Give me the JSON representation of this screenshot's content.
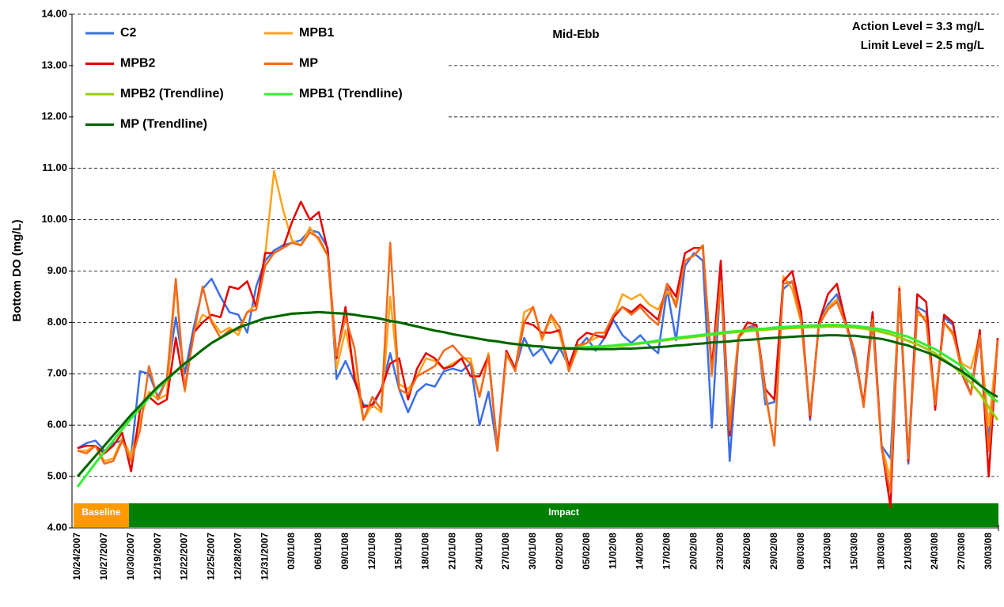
{
  "chart_data": {
    "type": "line",
    "y_label": "Bottom DO (mg/L)",
    "annotations": [
      "Mid-Ebb",
      "Action Level = 3.3 mg/L",
      "Limit Level = 2.5 mg/L"
    ],
    "bands": [
      {
        "label": "Baseline",
        "color": "#ff9900"
      },
      {
        "label": "Impact",
        "color": "#008000"
      }
    ],
    "ylim": [
      4,
      14
    ],
    "yticks": [
      {
        "value": 4,
        "label": "4.00"
      },
      {
        "value": 5,
        "label": "5.00"
      },
      {
        "value": 6,
        "label": "6.00"
      },
      {
        "value": 7,
        "label": "7.00"
      },
      {
        "value": 8,
        "label": "8.00"
      },
      {
        "value": 9,
        "label": "9.00"
      },
      {
        "value": 10,
        "label": "10.00"
      },
      {
        "value": 11,
        "label": "11.00"
      },
      {
        "value": 12,
        "label": "12.00"
      },
      {
        "value": 13,
        "label": "13.00"
      },
      {
        "value": 14,
        "label": "14.00"
      }
    ],
    "grid": true,
    "categories": [
      "10/24/2007",
      null,
      null,
      "10/27/2007",
      null,
      null,
      "10/30/2007",
      null,
      null,
      "12/19/2007",
      null,
      null,
      "12/22/2007",
      null,
      null,
      "12/25/2007",
      null,
      null,
      "12/28/2007",
      null,
      null,
      "12/31/2007",
      null,
      null,
      "03/01/08",
      null,
      null,
      "06/01/08",
      null,
      null,
      "09/01/08",
      null,
      null,
      "12/01/08",
      null,
      null,
      "15/01/08",
      null,
      null,
      "18/01/08",
      null,
      null,
      "21/01/08",
      null,
      null,
      "24/01/08",
      null,
      null,
      "27/01/08",
      null,
      null,
      "30/01/08",
      null,
      null,
      "02/02/08",
      null,
      null,
      "05/02/08",
      null,
      null,
      "11/02/08",
      null,
      null,
      "14/02/08",
      null,
      null,
      "17/02/08",
      null,
      null,
      "20/02/08",
      null,
      null,
      "23/02/08",
      null,
      null,
      "26/02/08",
      null,
      null,
      "29/02/08",
      null,
      null,
      "08/03/08",
      null,
      null,
      "12/03/08",
      null,
      null,
      "15/03/08",
      null,
      null,
      "18/03/08",
      null,
      null,
      "21/03/08",
      null,
      null,
      "24/03/08",
      null,
      null,
      "27/03/08",
      null,
      null,
      "30/03/08",
      null
    ],
    "series": [
      {
        "name": "C2",
        "color": "#3c6ee6",
        "width": 2.5,
        "values": [
          5.55,
          5.65,
          5.7,
          5.5,
          5.65,
          5.7,
          5.4,
          7.05,
          7.0,
          6.55,
          6.9,
          8.1,
          7.0,
          7.9,
          8.65,
          8.85,
          8.5,
          8.2,
          8.15,
          7.8,
          8.7,
          9.2,
          9.4,
          9.5,
          9.55,
          9.6,
          9.8,
          9.75,
          9.45,
          6.9,
          7.25,
          6.85,
          6.4,
          6.35,
          6.7,
          7.4,
          6.7,
          6.25,
          6.65,
          6.8,
          6.75,
          7.05,
          7.1,
          7.05,
          7.2,
          6.0,
          6.65,
          5.5,
          7.4,
          7.1,
          7.7,
          7.35,
          7.5,
          7.2,
          7.5,
          7.15,
          7.5,
          7.7,
          7.45,
          7.7,
          8.05,
          7.75,
          7.6,
          7.75,
          7.55,
          7.4,
          8.65,
          7.65,
          9.1,
          9.35,
          9.2,
          5.95,
          8.9,
          5.3,
          7.7,
          7.9,
          7.95,
          6.4,
          6.45,
          8.65,
          8.8,
          8.1,
          6.1,
          8.0,
          8.35,
          8.55,
          8.0,
          7.3,
          6.4,
          8.0,
          5.6,
          5.35,
          8.55,
          5.25,
          8.3,
          8.2,
          6.35,
          8.1,
          7.95,
          7.1,
          6.6,
          7.7,
          5.7,
          7.6
        ]
      },
      {
        "name": "MPB1",
        "color": "#ffa31a",
        "width": 2.5,
        "values": [
          5.5,
          5.5,
          5.6,
          5.3,
          5.35,
          5.75,
          5.4,
          6.1,
          6.65,
          6.5,
          6.6,
          8.8,
          6.65,
          7.8,
          8.15,
          8.05,
          7.8,
          7.9,
          7.75,
          8.2,
          8.35,
          9.3,
          10.95,
          10.2,
          9.6,
          9.5,
          9.85,
          9.6,
          9.3,
          7.1,
          7.85,
          7.05,
          6.1,
          6.4,
          6.25,
          8.5,
          6.8,
          6.7,
          6.95,
          7.3,
          7.25,
          7.1,
          7.2,
          7.3,
          7.3,
          6.55,
          7.4,
          5.5,
          7.35,
          7.1,
          8.2,
          8.3,
          7.65,
          8.1,
          7.75,
          7.05,
          7.5,
          7.6,
          7.7,
          7.75,
          8.1,
          8.55,
          8.45,
          8.55,
          8.35,
          8.25,
          8.6,
          8.4,
          9.2,
          9.3,
          9.5,
          6.95,
          8.75,
          6.1,
          7.75,
          7.85,
          7.85,
          6.6,
          5.6,
          8.9,
          8.65,
          8.0,
          6.2,
          7.95,
          8.3,
          8.45,
          8.0,
          7.45,
          6.4,
          8.1,
          5.6,
          4.95,
          8.7,
          5.4,
          8.15,
          8.1,
          6.5,
          8.0,
          7.75,
          7.2,
          7.1,
          7.75,
          6.0,
          7.65
        ]
      },
      {
        "name": "MPB2",
        "color": "#e60000",
        "width": 2.5,
        "values": [
          5.55,
          5.6,
          5.6,
          5.45,
          5.6,
          5.85,
          5.1,
          6.3,
          6.55,
          6.4,
          6.5,
          7.7,
          6.7,
          7.8,
          8.0,
          8.15,
          8.1,
          8.7,
          8.65,
          8.8,
          8.3,
          9.35,
          9.35,
          9.45,
          9.95,
          10.35,
          10.0,
          10.15,
          9.4,
          7.3,
          8.3,
          6.9,
          6.35,
          6.4,
          6.7,
          7.2,
          7.3,
          6.5,
          7.1,
          7.4,
          7.3,
          7.1,
          7.15,
          7.3,
          6.95,
          6.95,
          7.35,
          5.55,
          7.45,
          7.1,
          8.0,
          7.95,
          7.8,
          7.8,
          7.85,
          7.15,
          7.65,
          7.8,
          7.75,
          7.7,
          8.1,
          8.3,
          8.2,
          8.35,
          8.2,
          8.05,
          8.75,
          8.5,
          9.35,
          9.45,
          9.45,
          7.1,
          9.2,
          5.8,
          7.7,
          8.0,
          7.95,
          6.7,
          6.5,
          8.8,
          9.0,
          8.2,
          6.15,
          8.0,
          8.55,
          8.75,
          8.0,
          7.4,
          6.4,
          8.2,
          5.6,
          4.4,
          8.65,
          5.3,
          8.55,
          8.4,
          6.3,
          8.15,
          8.0,
          7.0,
          6.6,
          7.85,
          5.0,
          7.7
        ]
      },
      {
        "name": "MP",
        "color": "#f46a1c",
        "width": 2.5,
        "values": [
          5.5,
          5.45,
          5.6,
          5.25,
          5.3,
          5.7,
          5.3,
          5.9,
          7.15,
          6.5,
          6.9,
          8.85,
          6.7,
          7.75,
          8.7,
          8.0,
          7.7,
          7.85,
          7.85,
          8.2,
          8.25,
          9.1,
          9.35,
          9.45,
          9.55,
          9.5,
          9.75,
          9.65,
          9.3,
          7.35,
          8.1,
          7.5,
          6.1,
          6.55,
          6.3,
          9.55,
          6.7,
          6.6,
          6.95,
          7.05,
          7.15,
          7.45,
          7.55,
          7.35,
          7.2,
          6.55,
          7.35,
          5.5,
          7.4,
          7.05,
          8.0,
          8.3,
          7.7,
          8.15,
          7.9,
          7.05,
          7.55,
          7.6,
          7.8,
          7.8,
          8.15,
          8.3,
          8.15,
          8.3,
          8.1,
          7.95,
          8.75,
          8.3,
          9.2,
          9.3,
          9.5,
          7.0,
          8.8,
          5.9,
          7.7,
          7.9,
          7.9,
          6.65,
          5.6,
          8.75,
          8.8,
          8.05,
          6.2,
          7.95,
          8.25,
          8.4,
          7.95,
          7.4,
          6.35,
          8.05,
          5.55,
          4.7,
          8.6,
          5.35,
          8.25,
          8.0,
          6.4,
          8.0,
          7.8,
          7.05,
          6.6,
          7.75,
          5.5,
          7.65
        ]
      },
      {
        "name": "MPB2 (Trendline)",
        "color": "#99cc00",
        "width": 3,
        "values": [
          5.0,
          5.2,
          5.4,
          5.6,
          5.8,
          6.0,
          6.2,
          6.38,
          6.57,
          6.75,
          6.9,
          7.05,
          7.2,
          7.33,
          7.47,
          7.6,
          7.7,
          7.8,
          7.9,
          7.96,
          8.02,
          8.08,
          8.11,
          8.14,
          8.17,
          8.18,
          8.19,
          8.2,
          8.19,
          8.18,
          8.17,
          8.15,
          8.12,
          8.1,
          8.07,
          8.03,
          8.0,
          7.96,
          7.92,
          7.88,
          7.84,
          7.81,
          7.77,
          7.74,
          7.71,
          7.68,
          7.65,
          7.63,
          7.6,
          7.58,
          7.56,
          7.54,
          7.53,
          7.51,
          7.5,
          7.5,
          7.5,
          7.51,
          7.52,
          7.53,
          7.54,
          7.55,
          7.57,
          7.59,
          7.61,
          7.63,
          7.66,
          7.68,
          7.7,
          7.72,
          7.74,
          7.76,
          7.78,
          7.8,
          7.82,
          7.83,
          7.85,
          7.86,
          7.87,
          7.88,
          7.89,
          7.9,
          7.91,
          7.91,
          7.92,
          7.92,
          7.91,
          7.9,
          7.88,
          7.85,
          7.81,
          7.77,
          7.71,
          7.64,
          7.57,
          7.49,
          7.4,
          7.28,
          7.15,
          7.0,
          6.82,
          6.62,
          6.35,
          6.1
        ]
      },
      {
        "name": "MPB1 (Trendline)",
        "color": "#33ee33",
        "width": 3,
        "values": [
          4.8,
          5.03,
          5.26,
          5.48,
          5.7,
          5.92,
          6.13,
          6.33,
          6.53,
          6.72,
          6.88,
          7.04,
          7.19,
          7.33,
          7.47,
          7.6,
          7.7,
          7.8,
          7.9,
          7.96,
          8.02,
          8.08,
          8.11,
          8.14,
          8.17,
          8.18,
          8.19,
          8.2,
          8.19,
          8.18,
          8.17,
          8.15,
          8.12,
          8.1,
          8.07,
          8.03,
          8.0,
          7.96,
          7.92,
          7.88,
          7.84,
          7.81,
          7.77,
          7.74,
          7.71,
          7.68,
          7.65,
          7.63,
          7.6,
          7.58,
          7.56,
          7.54,
          7.53,
          7.51,
          7.5,
          7.5,
          7.51,
          7.52,
          7.53,
          7.54,
          7.55,
          7.57,
          7.58,
          7.6,
          7.62,
          7.65,
          7.67,
          7.7,
          7.72,
          7.74,
          7.76,
          7.78,
          7.8,
          7.82,
          7.83,
          7.85,
          7.87,
          7.88,
          7.9,
          7.91,
          7.92,
          7.93,
          7.94,
          7.94,
          7.95,
          7.95,
          7.94,
          7.93,
          7.91,
          7.89,
          7.86,
          7.82,
          7.77,
          7.72,
          7.64,
          7.56,
          7.48,
          7.37,
          7.26,
          7.15,
          6.97,
          6.79,
          6.6,
          6.45
        ]
      },
      {
        "name": "MP (Trendline)",
        "color": "#006400",
        "width": 3,
        "values": [
          5.0,
          5.2,
          5.4,
          5.6,
          5.8,
          6.0,
          6.2,
          6.38,
          6.57,
          6.75,
          6.9,
          7.05,
          7.2,
          7.33,
          7.47,
          7.6,
          7.7,
          7.8,
          7.9,
          7.96,
          8.02,
          8.08,
          8.11,
          8.14,
          8.17,
          8.18,
          8.19,
          8.2,
          8.19,
          8.18,
          8.17,
          8.15,
          8.12,
          8.1,
          8.07,
          8.03,
          8.0,
          7.96,
          7.92,
          7.88,
          7.84,
          7.81,
          7.77,
          7.74,
          7.71,
          7.68,
          7.65,
          7.63,
          7.6,
          7.58,
          7.56,
          7.54,
          7.53,
          7.51,
          7.5,
          7.49,
          7.49,
          7.48,
          7.48,
          7.48,
          7.48,
          7.49,
          7.49,
          7.5,
          7.51,
          7.52,
          7.53,
          7.55,
          7.56,
          7.58,
          7.59,
          7.61,
          7.62,
          7.63,
          7.65,
          7.66,
          7.67,
          7.69,
          7.7,
          7.71,
          7.72,
          7.73,
          7.74,
          7.74,
          7.75,
          7.75,
          7.74,
          7.74,
          7.72,
          7.7,
          7.68,
          7.64,
          7.59,
          7.55,
          7.48,
          7.42,
          7.35,
          7.25,
          7.15,
          7.05,
          6.92,
          6.78,
          6.65,
          6.55
        ]
      }
    ]
  }
}
